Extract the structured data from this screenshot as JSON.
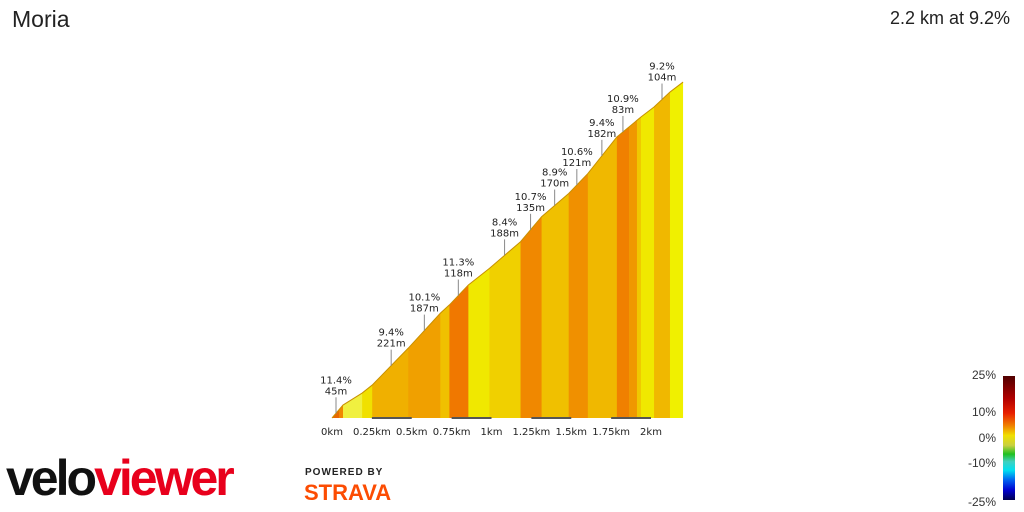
{
  "header": {
    "title": "Moria",
    "summary": "2.2 km at 9.2%"
  },
  "chart_data": {
    "type": "area",
    "xlabel": "",
    "ylabel": "",
    "x_unit": "km",
    "y_unit": "m",
    "xlim": [
      0,
      2.2
    ],
    "profile": [
      [
        0,
        0
      ],
      [
        0.069,
        7.8
      ],
      [
        0.189,
        15
      ],
      [
        0.252,
        19.8
      ],
      [
        0.478,
        42
      ],
      [
        0.679,
        63
      ],
      [
        0.736,
        68
      ],
      [
        0.855,
        80
      ],
      [
        0.987,
        90
      ],
      [
        1.182,
        106
      ],
      [
        1.314,
        121
      ],
      [
        1.484,
        135
      ],
      [
        1.604,
        147
      ],
      [
        1.786,
        169
      ],
      [
        1.862,
        175
      ],
      [
        1.937,
        181
      ],
      [
        2.019,
        187
      ],
      [
        2.119,
        196
      ],
      [
        2.201,
        202
      ]
    ],
    "bands": [
      {
        "from": 0,
        "to": 0.044,
        "color": "#e86800"
      },
      {
        "from": 0.044,
        "to": 0.069,
        "color": "#f08800"
      },
      {
        "from": 0.069,
        "to": 0.189,
        "color": "#f0f040"
      },
      {
        "from": 0.189,
        "to": 0.252,
        "color": "#f0e000"
      },
      {
        "from": 0.252,
        "to": 0.478,
        "color": "#f0b000"
      },
      {
        "from": 0.478,
        "to": 0.679,
        "color": "#f0a000"
      },
      {
        "from": 0.679,
        "to": 0.736,
        "color": "#f0c000"
      },
      {
        "from": 0.736,
        "to": 0.855,
        "color": "#f07800"
      },
      {
        "from": 0.855,
        "to": 0.987,
        "color": "#f0e800"
      },
      {
        "from": 0.987,
        "to": 1.182,
        "color": "#f0d000"
      },
      {
        "from": 1.182,
        "to": 1.314,
        "color": "#f08800"
      },
      {
        "from": 1.314,
        "to": 1.484,
        "color": "#f0c000"
      },
      {
        "from": 1.484,
        "to": 1.604,
        "color": "#f09000"
      },
      {
        "from": 1.604,
        "to": 1.786,
        "color": "#f0b800"
      },
      {
        "from": 1.786,
        "to": 1.862,
        "color": "#f08000"
      },
      {
        "from": 1.862,
        "to": 1.912,
        "color": "#f09800"
      },
      {
        "from": 1.912,
        "to": 1.937,
        "color": "#f0c800"
      },
      {
        "from": 1.937,
        "to": 2.019,
        "color": "#f0e800"
      },
      {
        "from": 2.019,
        "to": 2.119,
        "color": "#f0b800"
      },
      {
        "from": 2.119,
        "to": 2.201,
        "color": "#f0f000"
      }
    ],
    "annotations": [
      {
        "km": 0.025,
        "grade": "11.4%",
        "length": "45m"
      },
      {
        "km": 0.371,
        "grade": "9.4%",
        "length": "221m"
      },
      {
        "km": 0.579,
        "grade": "10.1%",
        "length": "187m"
      },
      {
        "km": 0.792,
        "grade": "11.3%",
        "length": "118m"
      },
      {
        "km": 1.082,
        "grade": "8.4%",
        "length": "188m"
      },
      {
        "km": 1.245,
        "grade": "10.7%",
        "length": "135m"
      },
      {
        "km": 1.396,
        "grade": "8.9%",
        "length": "170m"
      },
      {
        "km": 1.535,
        "grade": "10.6%",
        "length": "121m"
      },
      {
        "km": 1.692,
        "grade": "9.4%",
        "length": "182m"
      },
      {
        "km": 1.824,
        "grade": "10.9%",
        "length": "83m"
      },
      {
        "km": 2.069,
        "grade": "9.2%",
        "length": "104m"
      }
    ],
    "x_ticks": [
      {
        "km": 0,
        "label": "0km"
      },
      {
        "km": 0.25,
        "label": "0.25km"
      },
      {
        "km": 0.5,
        "label": "0.5km"
      },
      {
        "km": 0.75,
        "label": "0.75km"
      },
      {
        "km": 1,
        "label": "1km"
      },
      {
        "km": 1.25,
        "label": "1.25km"
      },
      {
        "km": 1.5,
        "label": "1.5km"
      },
      {
        "km": 1.75,
        "label": "1.75km"
      },
      {
        "km": 2,
        "label": "2km"
      }
    ],
    "legend": {
      "type": "gradient",
      "placement": "bottom-right",
      "labels": [
        "25%",
        "10%",
        "0%",
        "-10%",
        "-25%"
      ]
    }
  },
  "branding": {
    "logo_part1": "velo",
    "logo_part2": "viewer",
    "powered_by": "POWERED BY",
    "strava": "STRAVA"
  }
}
